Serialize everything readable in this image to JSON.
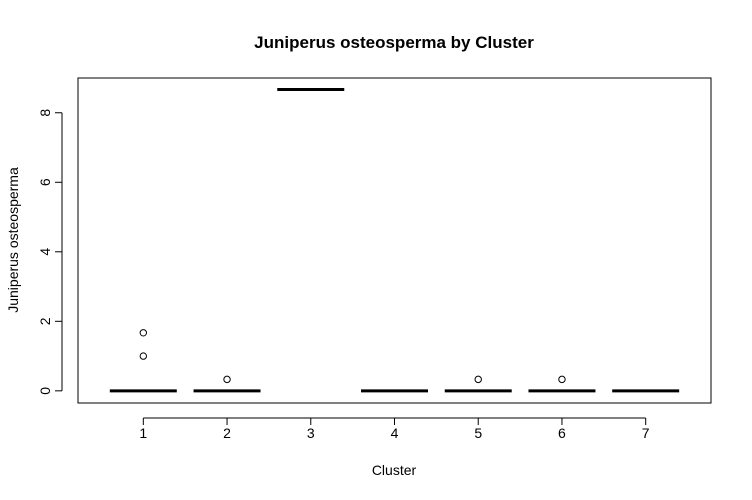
{
  "chart_data": {
    "type": "boxplot",
    "title": "Juniperus osteosperma by Cluster",
    "xlabel": "Cluster",
    "ylabel": "Juniperus osteosperma",
    "categories": [
      "1",
      "2",
      "3",
      "4",
      "5",
      "6",
      "7"
    ],
    "medians": [
      0,
      0,
      8.67,
      0,
      0,
      0,
      0
    ],
    "q1": [
      0,
      0,
      8.67,
      0,
      0,
      0,
      0
    ],
    "q3": [
      0,
      0,
      8.67,
      0,
      0,
      0,
      0
    ],
    "whisker_low": [
      0,
      0,
      8.67,
      0,
      0,
      0,
      0
    ],
    "whisker_high": [
      0,
      0,
      8.67,
      0,
      0,
      0,
      0
    ],
    "outliers": [
      [
        1.0,
        1.67
      ],
      [
        0.33
      ],
      [],
      [],
      [
        0.33
      ],
      [
        0.33
      ],
      []
    ],
    "yticks": [
      0,
      2,
      4,
      6,
      8
    ],
    "ylim": [
      -0.35,
      9.0
    ],
    "grid": false
  }
}
